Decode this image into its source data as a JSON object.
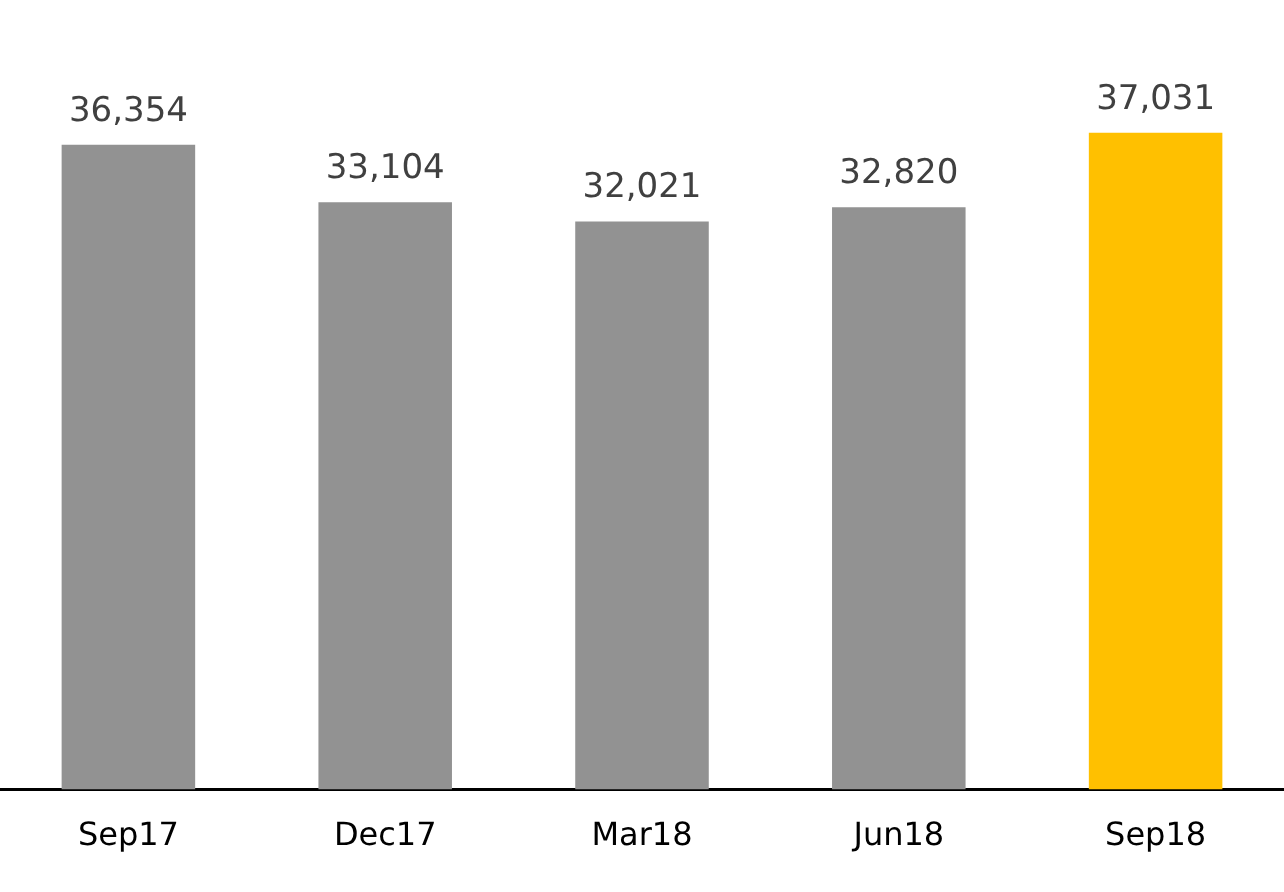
{
  "chart_data": {
    "type": "bar",
    "categories": [
      "Sep17",
      "Dec17",
      "Mar18",
      "Jun18",
      "Sep18"
    ],
    "values": [
      36354,
      33104,
      32021,
      32820,
      37031
    ],
    "value_labels": [
      "36,354",
      "33,104",
      "32,021",
      "32,820",
      "37,031"
    ],
    "colors": [
      "#929292",
      "#929292",
      "#929292",
      "#929292",
      "#ffc000"
    ],
    "tick_labels": "x"
  }
}
